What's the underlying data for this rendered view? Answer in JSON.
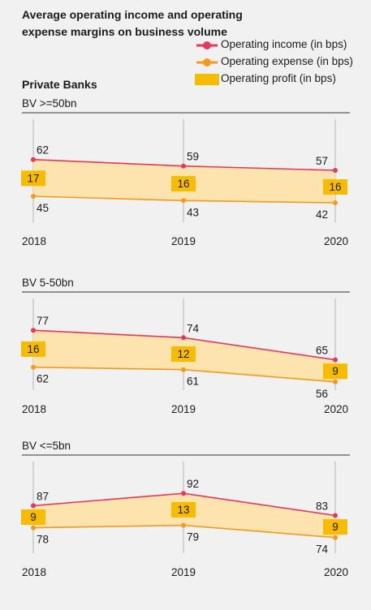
{
  "title": "Average operating income and operating expense margins on business volume",
  "section_label": "Private Banks",
  "legend": {
    "income": "Operating income (in bps)",
    "expense": "Operating expense (in bps)",
    "profit": "Operating profit (in bps)"
  },
  "colors": {
    "income": "#e5385c",
    "expense": "#f39a1e",
    "profit_fill": "#fde4ae",
    "profit_box": "#f7bb00",
    "rule": "#333333",
    "grid": "#b5b5b5"
  },
  "chart_data": [
    {
      "type": "line",
      "title": "BV >=50bn",
      "x": [
        "2018",
        "2019",
        "2020"
      ],
      "series": [
        {
          "name": "Operating income (in bps)",
          "values": [
            62,
            59,
            57
          ]
        },
        {
          "name": "Operating expense (in bps)",
          "values": [
            45,
            43,
            42
          ]
        },
        {
          "name": "Operating profit (in bps)",
          "values": [
            17,
            16,
            16
          ]
        }
      ]
    },
    {
      "type": "line",
      "title": "BV 5-50bn",
      "x": [
        "2018",
        "2019",
        "2020"
      ],
      "series": [
        {
          "name": "Operating income (in bps)",
          "values": [
            77,
            74,
            65
          ]
        },
        {
          "name": "Operating expense (in bps)",
          "values": [
            62,
            61,
            56
          ]
        },
        {
          "name": "Operating profit (in bps)",
          "values": [
            16,
            12,
            9
          ]
        }
      ]
    },
    {
      "type": "line",
      "title": "BV <=5bn",
      "x": [
        "2018",
        "2019",
        "2020"
      ],
      "series": [
        {
          "name": "Operating income (in bps)",
          "values": [
            87,
            92,
            83
          ]
        },
        {
          "name": "Operating expense (in bps)",
          "values": [
            78,
            79,
            74
          ]
        },
        {
          "name": "Operating profit (in bps)",
          "values": [
            9,
            13,
            9
          ]
        }
      ]
    }
  ]
}
